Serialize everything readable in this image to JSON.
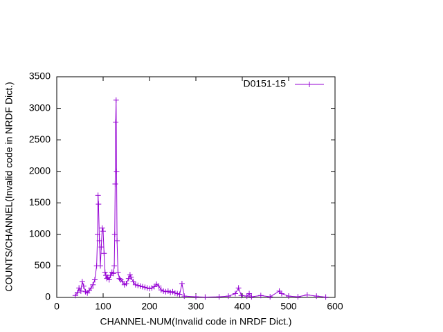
{
  "chart_data": {
    "type": "line",
    "xlabel": "CHANNEL-NUM(Invalid code in NRDF Dict.)",
    "ylabel": "COUNTS/CHANNEL(Invalid code in NRDF Dict.)",
    "x": [
      40,
      45,
      48,
      52,
      55,
      58,
      62,
      66,
      70,
      74,
      78,
      82,
      86,
      88,
      89,
      90,
      92,
      94,
      96,
      98,
      100,
      102,
      104,
      106,
      108,
      110,
      113,
      116,
      119,
      122,
      124,
      125,
      126,
      127,
      128,
      129,
      130,
      132,
      135,
      138,
      142,
      146,
      150,
      155,
      158,
      160,
      165,
      170,
      175,
      180,
      185,
      190,
      195,
      200,
      205,
      210,
      215,
      220,
      225,
      230,
      235,
      240,
      245,
      250,
      255,
      260,
      265,
      270,
      275,
      300,
      320,
      350,
      370,
      385,
      392,
      398,
      410,
      415,
      420,
      440,
      460,
      480,
      485,
      500,
      520,
      540,
      560,
      580
    ],
    "series": [
      {
        "name": "D0151-15",
        "color": "#9400d3",
        "values": [
          30,
          80,
          150,
          100,
          250,
          180,
          90,
          70,
          110,
          150,
          200,
          280,
          500,
          1000,
          1620,
          1480,
          900,
          500,
          800,
          1100,
          1050,
          700,
          400,
          350,
          300,
          320,
          280,
          350,
          400,
          380,
          500,
          1000,
          1800,
          2780,
          3130,
          2000,
          900,
          400,
          300,
          280,
          250,
          200,
          220,
          300,
          360,
          320,
          250,
          200,
          190,
          180,
          170,
          160,
          150,
          140,
          150,
          170,
          210,
          180,
          120,
          100,
          90,
          100,
          80,
          90,
          70,
          60,
          50,
          220,
          20,
          10,
          5,
          10,
          20,
          60,
          150,
          30,
          20,
          60,
          10,
          30,
          10,
          100,
          60,
          20,
          10,
          40,
          20,
          5
        ]
      }
    ],
    "xlim": [
      0,
      600
    ],
    "xticks": [
      0,
      100,
      200,
      300,
      400,
      500,
      600
    ],
    "ylim": [
      0,
      3500
    ],
    "yticks": [
      0,
      500,
      1000,
      1500,
      2000,
      2500,
      3000,
      3500
    ],
    "legend": "top-right"
  }
}
